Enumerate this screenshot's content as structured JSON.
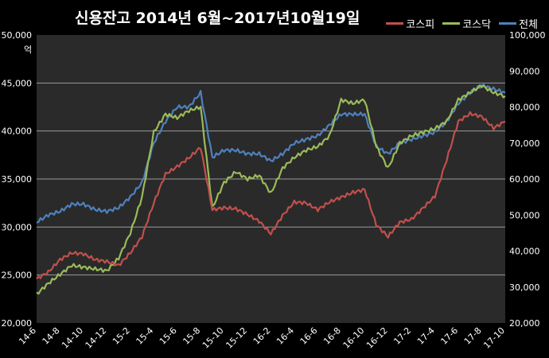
{
  "chart_data": {
    "type": "line",
    "title": "신용잔고  2014년 6월~2017년10월19일",
    "y_left_unit": "억",
    "y_left_lim": [
      20000,
      50000
    ],
    "y_left_ticks": [
      "20,000",
      "25,000",
      "30,000",
      "35,000",
      "40,000",
      "45,000",
      "50,000"
    ],
    "y_right_lim": [
      20000,
      100000
    ],
    "y_right_ticks": [
      "20,000",
      "30,000",
      "40,000",
      "50,000",
      "60,000",
      "70,000",
      "80,000",
      "90,000",
      "100,000"
    ],
    "x_tick_labels": [
      "14-6",
      "14-8",
      "14-10",
      "14-12",
      "15-2",
      "15-4",
      "15-6",
      "15-8",
      "15-10",
      "15-12",
      "16-2",
      "16-4",
      "16-6",
      "16-8",
      "16-10",
      "16-12",
      "17-2",
      "17-4",
      "17-6",
      "17-8",
      "17-10"
    ],
    "x": [
      "14-6",
      "14-7",
      "14-8",
      "14-9",
      "14-10",
      "14-11",
      "14-12",
      "15-1",
      "15-2",
      "15-3",
      "15-4",
      "15-5",
      "15-6",
      "15-7",
      "15-8",
      "15-9",
      "15-10",
      "15-11",
      "15-12",
      "16-1",
      "16-2",
      "16-3",
      "16-4",
      "16-5",
      "16-6",
      "16-7",
      "16-8",
      "16-9",
      "16-10",
      "16-11",
      "16-12",
      "17-1",
      "17-2",
      "17-3",
      "17-4",
      "17-5",
      "17-6",
      "17-7",
      "17-8",
      "17-9",
      "17-10"
    ],
    "grid": true,
    "legend_position": "top-right",
    "series": [
      {
        "name": "코스피",
        "axis": "left",
        "color": "#c0504d",
        "values": [
          24600,
          25300,
          26600,
          27300,
          27200,
          26600,
          26400,
          26000,
          27300,
          29000,
          32500,
          35500,
          36300,
          37200,
          38300,
          31800,
          32000,
          31900,
          31300,
          30600,
          29300,
          31200,
          32600,
          32500,
          31800,
          32600,
          33100,
          33600,
          33900,
          30200,
          29000,
          30500,
          30800,
          32000,
          33200,
          37000,
          41000,
          41800,
          41500,
          40300,
          41000
        ]
      },
      {
        "name": "코스닥",
        "axis": "right",
        "color": "#9bbb59",
        "values": [
          28000,
          31000,
          33500,
          36000,
          35500,
          35000,
          34500,
          38000,
          45000,
          55000,
          73000,
          78000,
          77000,
          79000,
          80000,
          52000,
          59000,
          62000,
          60000,
          61000,
          56000,
          63000,
          66000,
          68000,
          69000,
          72000,
          82000,
          81000,
          82000,
          69000,
          63000,
          70000,
          72000,
          73000,
          74000,
          76000,
          82000,
          84000,
          86000,
          84000,
          83000
        ]
      },
      {
        "name": "전체",
        "axis": "right",
        "color": "#4f81bd",
        "values": [
          48000,
          50000,
          51000,
          53000,
          53000,
          51500,
          51000,
          52000,
          55000,
          59000,
          70000,
          76000,
          80000,
          80000,
          84000,
          66000,
          68000,
          68000,
          67000,
          67000,
          65000,
          67000,
          70000,
          71000,
          72000,
          75000,
          78000,
          78000,
          78000,
          69000,
          67000,
          70000,
          71000,
          72000,
          73000,
          76000,
          81000,
          84000,
          86000,
          85000,
          84000
        ]
      }
    ]
  }
}
